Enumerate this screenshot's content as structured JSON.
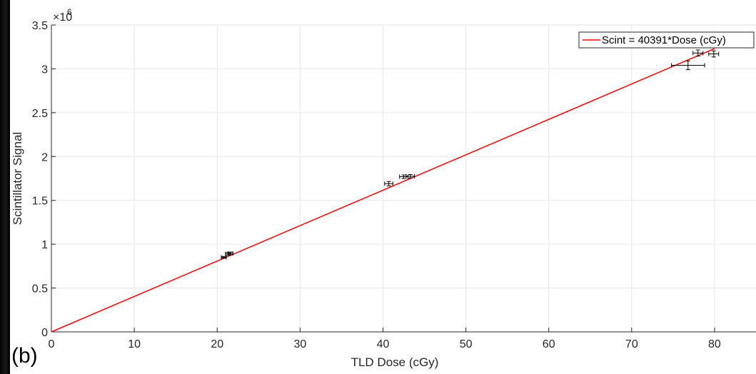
{
  "panel_label": "(b)",
  "chart_data": {
    "type": "scatter",
    "xlabel": "TLD Dose (cGy)",
    "ylabel": "Scintillator Signal",
    "y_exponent_label": "×10",
    "y_exponent_power": "6",
    "xlim": [
      0,
      85
    ],
    "ylim": [
      0,
      3500000
    ],
    "x_ticks": [
      0,
      10,
      20,
      30,
      40,
      50,
      60,
      70,
      80
    ],
    "x_tick_labels": [
      "0",
      "10",
      "20",
      "30",
      "40",
      "50",
      "60",
      "70",
      "80"
    ],
    "y_ticks": [
      0,
      500000,
      1000000,
      1500000,
      2000000,
      2500000,
      3000000,
      3500000
    ],
    "y_tick_labels": [
      "0",
      "0.5",
      "1",
      "1.5",
      "2",
      "2.5",
      "3",
      "3.5"
    ],
    "grid": true,
    "legend_position": "top-right",
    "fit_line": {
      "name": "Scint = 40391*Dose (cGy)",
      "slope": 40391,
      "x_range": [
        0,
        80
      ],
      "color": "#ff0000"
    },
    "points": [
      {
        "x": 20.8,
        "y": 850000,
        "xerr": 0.3,
        "yerr": 10000
      },
      {
        "x": 21.3,
        "y": 890000,
        "xerr": 0.3,
        "yerr": 15000
      },
      {
        "x": 21.6,
        "y": 895000,
        "xerr": 0.3,
        "yerr": 15000
      },
      {
        "x": 40.7,
        "y": 1690000,
        "xerr": 0.5,
        "yerr": 25000
      },
      {
        "x": 42.5,
        "y": 1770000,
        "xerr": 0.5,
        "yerr": 20000
      },
      {
        "x": 43.3,
        "y": 1775000,
        "xerr": 0.5,
        "yerr": 20000
      },
      {
        "x": 76.8,
        "y": 3040000,
        "xerr": 2.0,
        "yerr": 50000
      },
      {
        "x": 78.0,
        "y": 3180000,
        "xerr": 0.6,
        "yerr": 35000
      },
      {
        "x": 79.9,
        "y": 3170000,
        "xerr": 0.6,
        "yerr": 35000
      }
    ],
    "marker_color": "#000000"
  }
}
